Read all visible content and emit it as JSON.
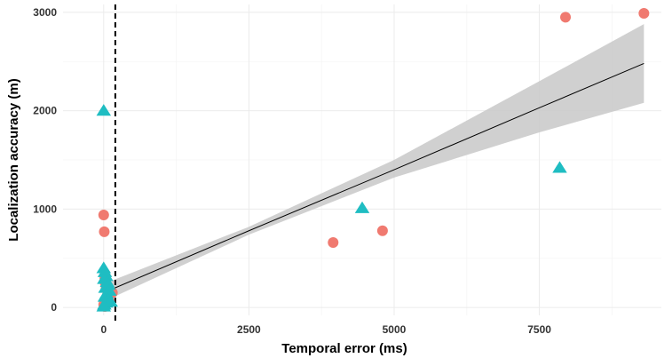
{
  "chart_data": {
    "type": "scatter",
    "xlabel": "Temporal error (ms)",
    "ylabel": "Localization accuracy (m)",
    "xlim": [
      -700,
      9600
    ],
    "ylim": [
      -80,
      3080
    ],
    "x_ticks": [
      0,
      2500,
      5000,
      7500
    ],
    "y_ticks": [
      0,
      1000,
      2000,
      3000
    ],
    "x_tick_labels": [
      "0",
      "2500",
      "5000",
      "7500"
    ],
    "y_tick_labels": [
      "0",
      "1000",
      "2000",
      "3000"
    ],
    "grid": true,
    "legend": "none",
    "vline": {
      "x": 200,
      "style": "dashed",
      "color": "#000000"
    },
    "trend": {
      "type": "linear",
      "color": "#000000",
      "band_color": "#c8c8c8",
      "x": [
        0,
        2500,
        5000,
        7500,
        9300
      ],
      "y": [
        150,
        780,
        1400,
        2030,
        2480
      ],
      "ci_low": [
        60,
        740,
        1320,
        1780,
        2080
      ],
      "ci_high": [
        240,
        820,
        1500,
        2300,
        2880
      ]
    },
    "series": [
      {
        "marker": "circle",
        "color": "#F07A70",
        "points": [
          [
            9300,
            2990
          ],
          [
            7950,
            2950
          ],
          [
            4800,
            780
          ],
          [
            3950,
            660
          ],
          [
            0,
            940
          ],
          [
            10,
            770
          ],
          [
            20,
            300
          ],
          [
            30,
            240
          ],
          [
            40,
            190
          ],
          [
            150,
            150
          ],
          [
            60,
            120
          ],
          [
            80,
            90
          ],
          [
            100,
            60
          ],
          [
            0,
            30
          ],
          [
            20,
            10
          ]
        ]
      },
      {
        "marker": "triangle",
        "color": "#1FBDC2",
        "points": [
          [
            0,
            2000
          ],
          [
            4450,
            1010
          ],
          [
            7850,
            1420
          ],
          [
            0,
            400
          ],
          [
            20,
            360
          ],
          [
            40,
            320
          ],
          [
            10,
            290
          ],
          [
            60,
            260
          ],
          [
            80,
            230
          ],
          [
            30,
            200
          ],
          [
            100,
            170
          ],
          [
            50,
            140
          ],
          [
            20,
            110
          ],
          [
            70,
            80
          ],
          [
            40,
            50
          ],
          [
            10,
            30
          ],
          [
            120,
            60
          ],
          [
            0,
            10
          ]
        ]
      }
    ]
  }
}
